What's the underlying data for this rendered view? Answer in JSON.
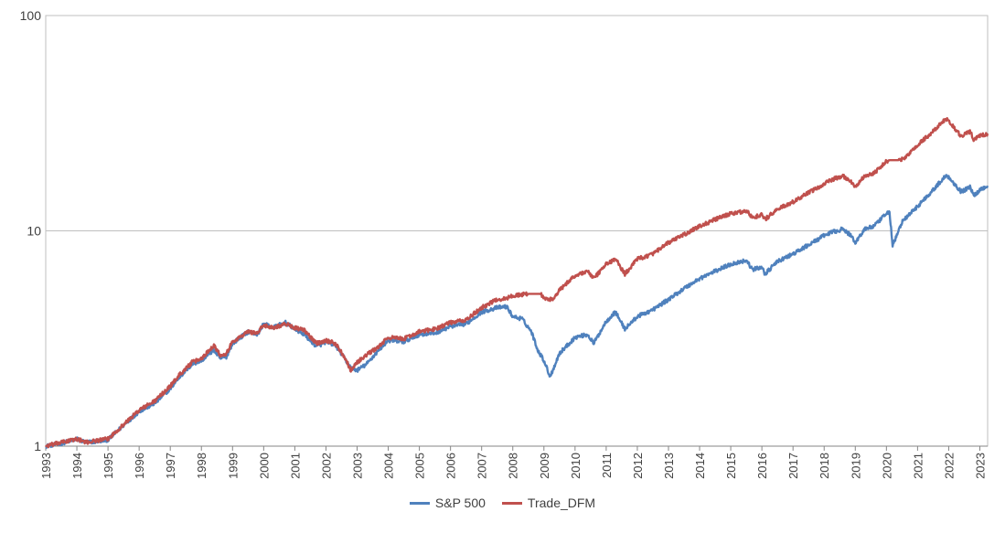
{
  "chart_data": {
    "type": "line",
    "title": "",
    "xlabel": "",
    "ylabel": "",
    "y_scale": "log",
    "ylim": [
      1,
      100
    ],
    "y_ticks": [
      "1",
      "10",
      "100"
    ],
    "x_range": [
      1993.0,
      2023.25
    ],
    "x_ticks": [
      "1993",
      "1994",
      "1995",
      "1996",
      "1997",
      "1998",
      "1999",
      "2000",
      "2001",
      "2002",
      "2003",
      "2004",
      "2005",
      "2006",
      "2007",
      "2008",
      "2009",
      "2010",
      "2011",
      "2012",
      "2013",
      "2014",
      "2015",
      "2016",
      "2017",
      "2018",
      "2019",
      "2020",
      "2021",
      "2022",
      "2023"
    ],
    "grid": true,
    "legend_position": "bottom",
    "series": [
      {
        "name": "S&P 500",
        "color": "#4f81bd",
        "points": [
          [
            1993.0,
            1.0
          ],
          [
            1993.5,
            1.03
          ],
          [
            1994.0,
            1.08
          ],
          [
            1994.3,
            1.04
          ],
          [
            1994.6,
            1.05
          ],
          [
            1995.0,
            1.07
          ],
          [
            1995.5,
            1.25
          ],
          [
            1996.0,
            1.45
          ],
          [
            1996.5,
            1.58
          ],
          [
            1997.0,
            1.85
          ],
          [
            1997.3,
            2.1
          ],
          [
            1997.7,
            2.4
          ],
          [
            1998.0,
            2.5
          ],
          [
            1998.4,
            2.8
          ],
          [
            1998.6,
            2.55
          ],
          [
            1998.8,
            2.6
          ],
          [
            1999.0,
            3.0
          ],
          [
            1999.5,
            3.4
          ],
          [
            1999.8,
            3.3
          ],
          [
            2000.0,
            3.7
          ],
          [
            2000.3,
            3.55
          ],
          [
            2000.7,
            3.75
          ],
          [
            2001.0,
            3.5
          ],
          [
            2001.3,
            3.3
          ],
          [
            2001.7,
            2.9
          ],
          [
            2002.0,
            3.05
          ],
          [
            2002.3,
            2.95
          ],
          [
            2002.6,
            2.55
          ],
          [
            2002.8,
            2.3
          ],
          [
            2003.0,
            2.25
          ],
          [
            2003.3,
            2.4
          ],
          [
            2003.7,
            2.8
          ],
          [
            2004.0,
            3.1
          ],
          [
            2004.5,
            3.05
          ],
          [
            2005.0,
            3.3
          ],
          [
            2005.5,
            3.35
          ],
          [
            2006.0,
            3.6
          ],
          [
            2006.5,
            3.7
          ],
          [
            2007.0,
            4.2
          ],
          [
            2007.5,
            4.4
          ],
          [
            2007.8,
            4.45
          ],
          [
            2008.0,
            4.0
          ],
          [
            2008.3,
            3.9
          ],
          [
            2008.6,
            3.4
          ],
          [
            2008.8,
            2.8
          ],
          [
            2009.0,
            2.5
          ],
          [
            2009.2,
            2.1
          ],
          [
            2009.5,
            2.7
          ],
          [
            2010.0,
            3.2
          ],
          [
            2010.4,
            3.3
          ],
          [
            2010.6,
            3.0
          ],
          [
            2011.0,
            3.8
          ],
          [
            2011.3,
            4.2
          ],
          [
            2011.6,
            3.5
          ],
          [
            2012.0,
            4.0
          ],
          [
            2012.5,
            4.3
          ],
          [
            2013.0,
            4.8
          ],
          [
            2013.5,
            5.4
          ],
          [
            2014.0,
            6.0
          ],
          [
            2014.5,
            6.5
          ],
          [
            2015.0,
            7.0
          ],
          [
            2015.5,
            7.3
          ],
          [
            2015.7,
            6.6
          ],
          [
            2016.0,
            6.8
          ],
          [
            2016.1,
            6.3
          ],
          [
            2016.5,
            7.2
          ],
          [
            2017.0,
            7.8
          ],
          [
            2017.5,
            8.6
          ],
          [
            2018.0,
            9.5
          ],
          [
            2018.2,
            9.8
          ],
          [
            2018.6,
            10.2
          ],
          [
            2018.9,
            9.4
          ],
          [
            2019.0,
            8.8
          ],
          [
            2019.3,
            10.2
          ],
          [
            2019.6,
            10.5
          ],
          [
            2020.0,
            12.0
          ],
          [
            2020.1,
            12.3
          ],
          [
            2020.2,
            8.5
          ],
          [
            2020.5,
            11.0
          ],
          [
            2021.0,
            13.0
          ],
          [
            2021.5,
            15.5
          ],
          [
            2021.9,
            18.0
          ],
          [
            2022.0,
            17.8
          ],
          [
            2022.4,
            15.2
          ],
          [
            2022.7,
            16.0
          ],
          [
            2022.8,
            14.5
          ],
          [
            2023.0,
            15.5
          ],
          [
            2023.25,
            16.2
          ]
        ]
      },
      {
        "name": "Trade_DFM",
        "color": "#c0504d",
        "points": [
          [
            1993.0,
            1.0
          ],
          [
            1993.5,
            1.04
          ],
          [
            1994.0,
            1.08
          ],
          [
            1994.3,
            1.04
          ],
          [
            1994.6,
            1.06
          ],
          [
            1995.0,
            1.08
          ],
          [
            1995.5,
            1.26
          ],
          [
            1996.0,
            1.47
          ],
          [
            1996.5,
            1.62
          ],
          [
            1997.0,
            1.9
          ],
          [
            1997.3,
            2.15
          ],
          [
            1997.7,
            2.45
          ],
          [
            1998.0,
            2.55
          ],
          [
            1998.4,
            2.95
          ],
          [
            1998.6,
            2.65
          ],
          [
            1998.8,
            2.7
          ],
          [
            1999.0,
            3.05
          ],
          [
            1999.5,
            3.4
          ],
          [
            1999.8,
            3.35
          ],
          [
            2000.0,
            3.65
          ],
          [
            2000.3,
            3.55
          ],
          [
            2000.7,
            3.7
          ],
          [
            2001.0,
            3.55
          ],
          [
            2001.3,
            3.45
          ],
          [
            2001.7,
            3.0
          ],
          [
            2002.0,
            3.1
          ],
          [
            2002.3,
            3.0
          ],
          [
            2002.6,
            2.6
          ],
          [
            2002.8,
            2.25
          ],
          [
            2003.0,
            2.45
          ],
          [
            2003.3,
            2.65
          ],
          [
            2003.7,
            2.9
          ],
          [
            2004.0,
            3.2
          ],
          [
            2004.5,
            3.15
          ],
          [
            2005.0,
            3.4
          ],
          [
            2005.5,
            3.5
          ],
          [
            2006.0,
            3.75
          ],
          [
            2006.5,
            3.85
          ],
          [
            2007.0,
            4.4
          ],
          [
            2007.5,
            4.8
          ],
          [
            2007.8,
            4.85
          ],
          [
            2008.0,
            5.0
          ],
          [
            2008.5,
            5.1
          ],
          [
            2008.9,
            5.1
          ],
          [
            2009.0,
            4.85
          ],
          [
            2009.3,
            4.8
          ],
          [
            2009.5,
            5.3
          ],
          [
            2010.0,
            6.2
          ],
          [
            2010.4,
            6.5
          ],
          [
            2010.6,
            6.0
          ],
          [
            2011.0,
            7.0
          ],
          [
            2011.3,
            7.4
          ],
          [
            2011.6,
            6.3
          ],
          [
            2012.0,
            7.4
          ],
          [
            2012.5,
            7.8
          ],
          [
            2013.0,
            8.8
          ],
          [
            2013.5,
            9.6
          ],
          [
            2014.0,
            10.5
          ],
          [
            2014.5,
            11.3
          ],
          [
            2015.0,
            12.0
          ],
          [
            2015.5,
            12.4
          ],
          [
            2015.7,
            11.5
          ],
          [
            2016.0,
            11.9
          ],
          [
            2016.1,
            11.3
          ],
          [
            2016.5,
            12.6
          ],
          [
            2017.0,
            13.6
          ],
          [
            2017.5,
            15.0
          ],
          [
            2018.0,
            16.5
          ],
          [
            2018.2,
            17.2
          ],
          [
            2018.6,
            18.0
          ],
          [
            2018.9,
            16.8
          ],
          [
            2019.0,
            16.0
          ],
          [
            2019.3,
            18.0
          ],
          [
            2019.6,
            18.5
          ],
          [
            2020.0,
            21.0
          ],
          [
            2020.1,
            21.3
          ],
          [
            2020.4,
            21.3
          ],
          [
            2020.6,
            21.8
          ],
          [
            2021.0,
            25.0
          ],
          [
            2021.5,
            29.0
          ],
          [
            2021.9,
            33.0
          ],
          [
            2022.0,
            32.5
          ],
          [
            2022.4,
            27.5
          ],
          [
            2022.7,
            29.0
          ],
          [
            2022.8,
            26.5
          ],
          [
            2023.0,
            27.5
          ],
          [
            2023.25,
            28.3
          ]
        ]
      }
    ]
  }
}
